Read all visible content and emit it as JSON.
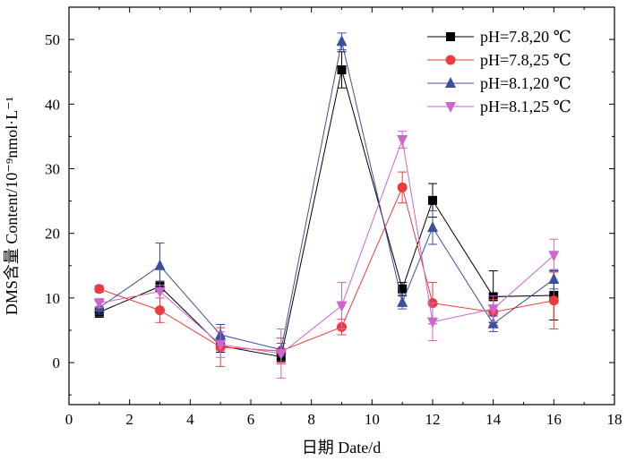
{
  "chart_data": {
    "type": "line",
    "title": "",
    "xlabel": "日期 Date/d",
    "ylabel": "DMS含量 Content/10⁻⁹nmol·L⁻¹",
    "xlim": [
      0,
      18
    ],
    "ylim": [
      -6.5,
      55
    ],
    "x_ticks": [
      0,
      2,
      4,
      6,
      8,
      10,
      12,
      14,
      16,
      18
    ],
    "y_ticks": [
      0,
      10,
      20,
      30,
      40,
      50
    ],
    "grid": false,
    "legend_position": "top-right",
    "series": [
      {
        "name": "pH=7.8,20 ℃",
        "color": "#000000",
        "marker": "square",
        "x": [
          1,
          3,
          5,
          7,
          9,
          11,
          12,
          14,
          16
        ],
        "y": [
          7.8,
          11.8,
          2.6,
          0.9,
          45.3,
          11.4,
          25.1,
          10.2,
          10.4
        ],
        "error": [
          0.8,
          0.8,
          1.0,
          0.8,
          2.8,
          1.0,
          2.6,
          4.0,
          3.8
        ]
      },
      {
        "name": "pH=7.8,25 ℃",
        "color": "#ee3b3b",
        "marker": "circle",
        "x": [
          1,
          3,
          5,
          7,
          9,
          11,
          12,
          14,
          16
        ],
        "y": [
          11.4,
          8.1,
          2.4,
          1.8,
          5.5,
          27.1,
          9.2,
          7.8,
          9.6
        ],
        "error": [
          0.5,
          1.9,
          3.0,
          2.0,
          1.2,
          2.4,
          3.2,
          2.0,
          4.4
        ]
      },
      {
        "name": "pH=8.1,20 ℃",
        "color": "#3c4f9e",
        "marker": "triangle-up",
        "x": [
          1,
          3,
          5,
          7,
          9,
          11,
          12,
          14,
          16
        ],
        "y": [
          8.5,
          15.0,
          4.3,
          2.0,
          49.7,
          9.3,
          20.9,
          6.0,
          12.9
        ],
        "error": [
          1.0,
          3.5,
          1.6,
          1.0,
          1.3,
          1.0,
          2.6,
          1.2,
          1.5
        ]
      },
      {
        "name": "pH=8.1,25 ℃",
        "color": "#cc66cc",
        "marker": "triangle-down",
        "x": [
          1,
          3,
          5,
          7,
          9,
          11,
          12,
          14,
          16
        ],
        "y": [
          9.2,
          11.0,
          2.8,
          1.4,
          8.8,
          34.5,
          6.3,
          8.3,
          16.6
        ],
        "error": [
          0.7,
          1.0,
          2.0,
          3.8,
          3.6,
          1.3,
          2.9,
          2.0,
          2.5
        ]
      }
    ]
  }
}
